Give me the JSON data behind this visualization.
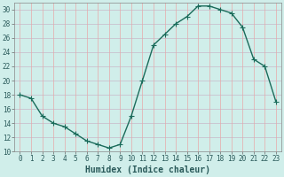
{
  "x": [
    0,
    1,
    2,
    3,
    4,
    5,
    6,
    7,
    8,
    9,
    10,
    11,
    12,
    13,
    14,
    15,
    16,
    17,
    18,
    19,
    20,
    21,
    22,
    23
  ],
  "y": [
    18,
    17.5,
    15,
    14,
    13.5,
    12.5,
    11.5,
    11,
    10.5,
    11,
    15,
    20,
    25,
    26.5,
    28,
    29,
    30.5,
    30.5,
    30,
    29.5,
    27.5,
    23,
    22,
    17
  ],
  "line_color": "#1a6b5a",
  "marker": "+",
  "bg_color": "#d0eeea",
  "grid_color_h": "#c8b8c8",
  "grid_color_v": "#e8a8a8",
  "xlabel": "Humidex (Indice chaleur)",
  "xlim": [
    -0.5,
    23.5
  ],
  "ylim": [
    10,
    31
  ],
  "yticks": [
    10,
    12,
    14,
    16,
    18,
    20,
    22,
    24,
    26,
    28,
    30
  ],
  "xticks": [
    0,
    1,
    2,
    3,
    4,
    5,
    6,
    7,
    8,
    9,
    10,
    11,
    12,
    13,
    14,
    15,
    16,
    17,
    18,
    19,
    20,
    21,
    22,
    23
  ],
  "tick_label_fontsize": 5.5,
  "xlabel_fontsize": 7,
  "line_width": 1.0,
  "marker_size": 4,
  "tick_color": "#2a5a5a"
}
